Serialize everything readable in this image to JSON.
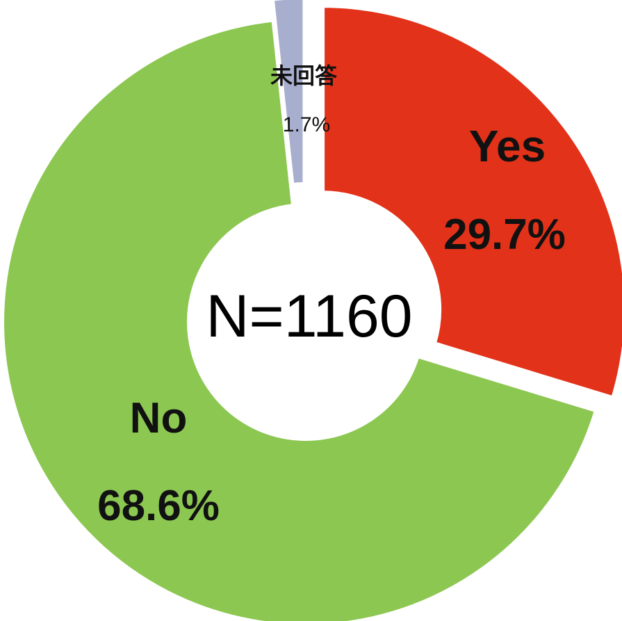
{
  "chart_data": {
    "type": "pie",
    "style": "donut",
    "center_label": "N=1160",
    "slices": [
      {
        "name": "Yes",
        "label_name": "Yes",
        "label_value": "29.7%",
        "value": 29.7,
        "color": "#e23219",
        "exploded": true
      },
      {
        "name": "No",
        "label_name": "No",
        "label_value": "68.6%",
        "value": 68.6,
        "color": "#8cc751",
        "exploded": false
      },
      {
        "name": "未回答",
        "label_name": "未回答",
        "label_value": "1.7%",
        "value": 1.7,
        "color": "#a8aecd",
        "exploded": true
      }
    ]
  }
}
